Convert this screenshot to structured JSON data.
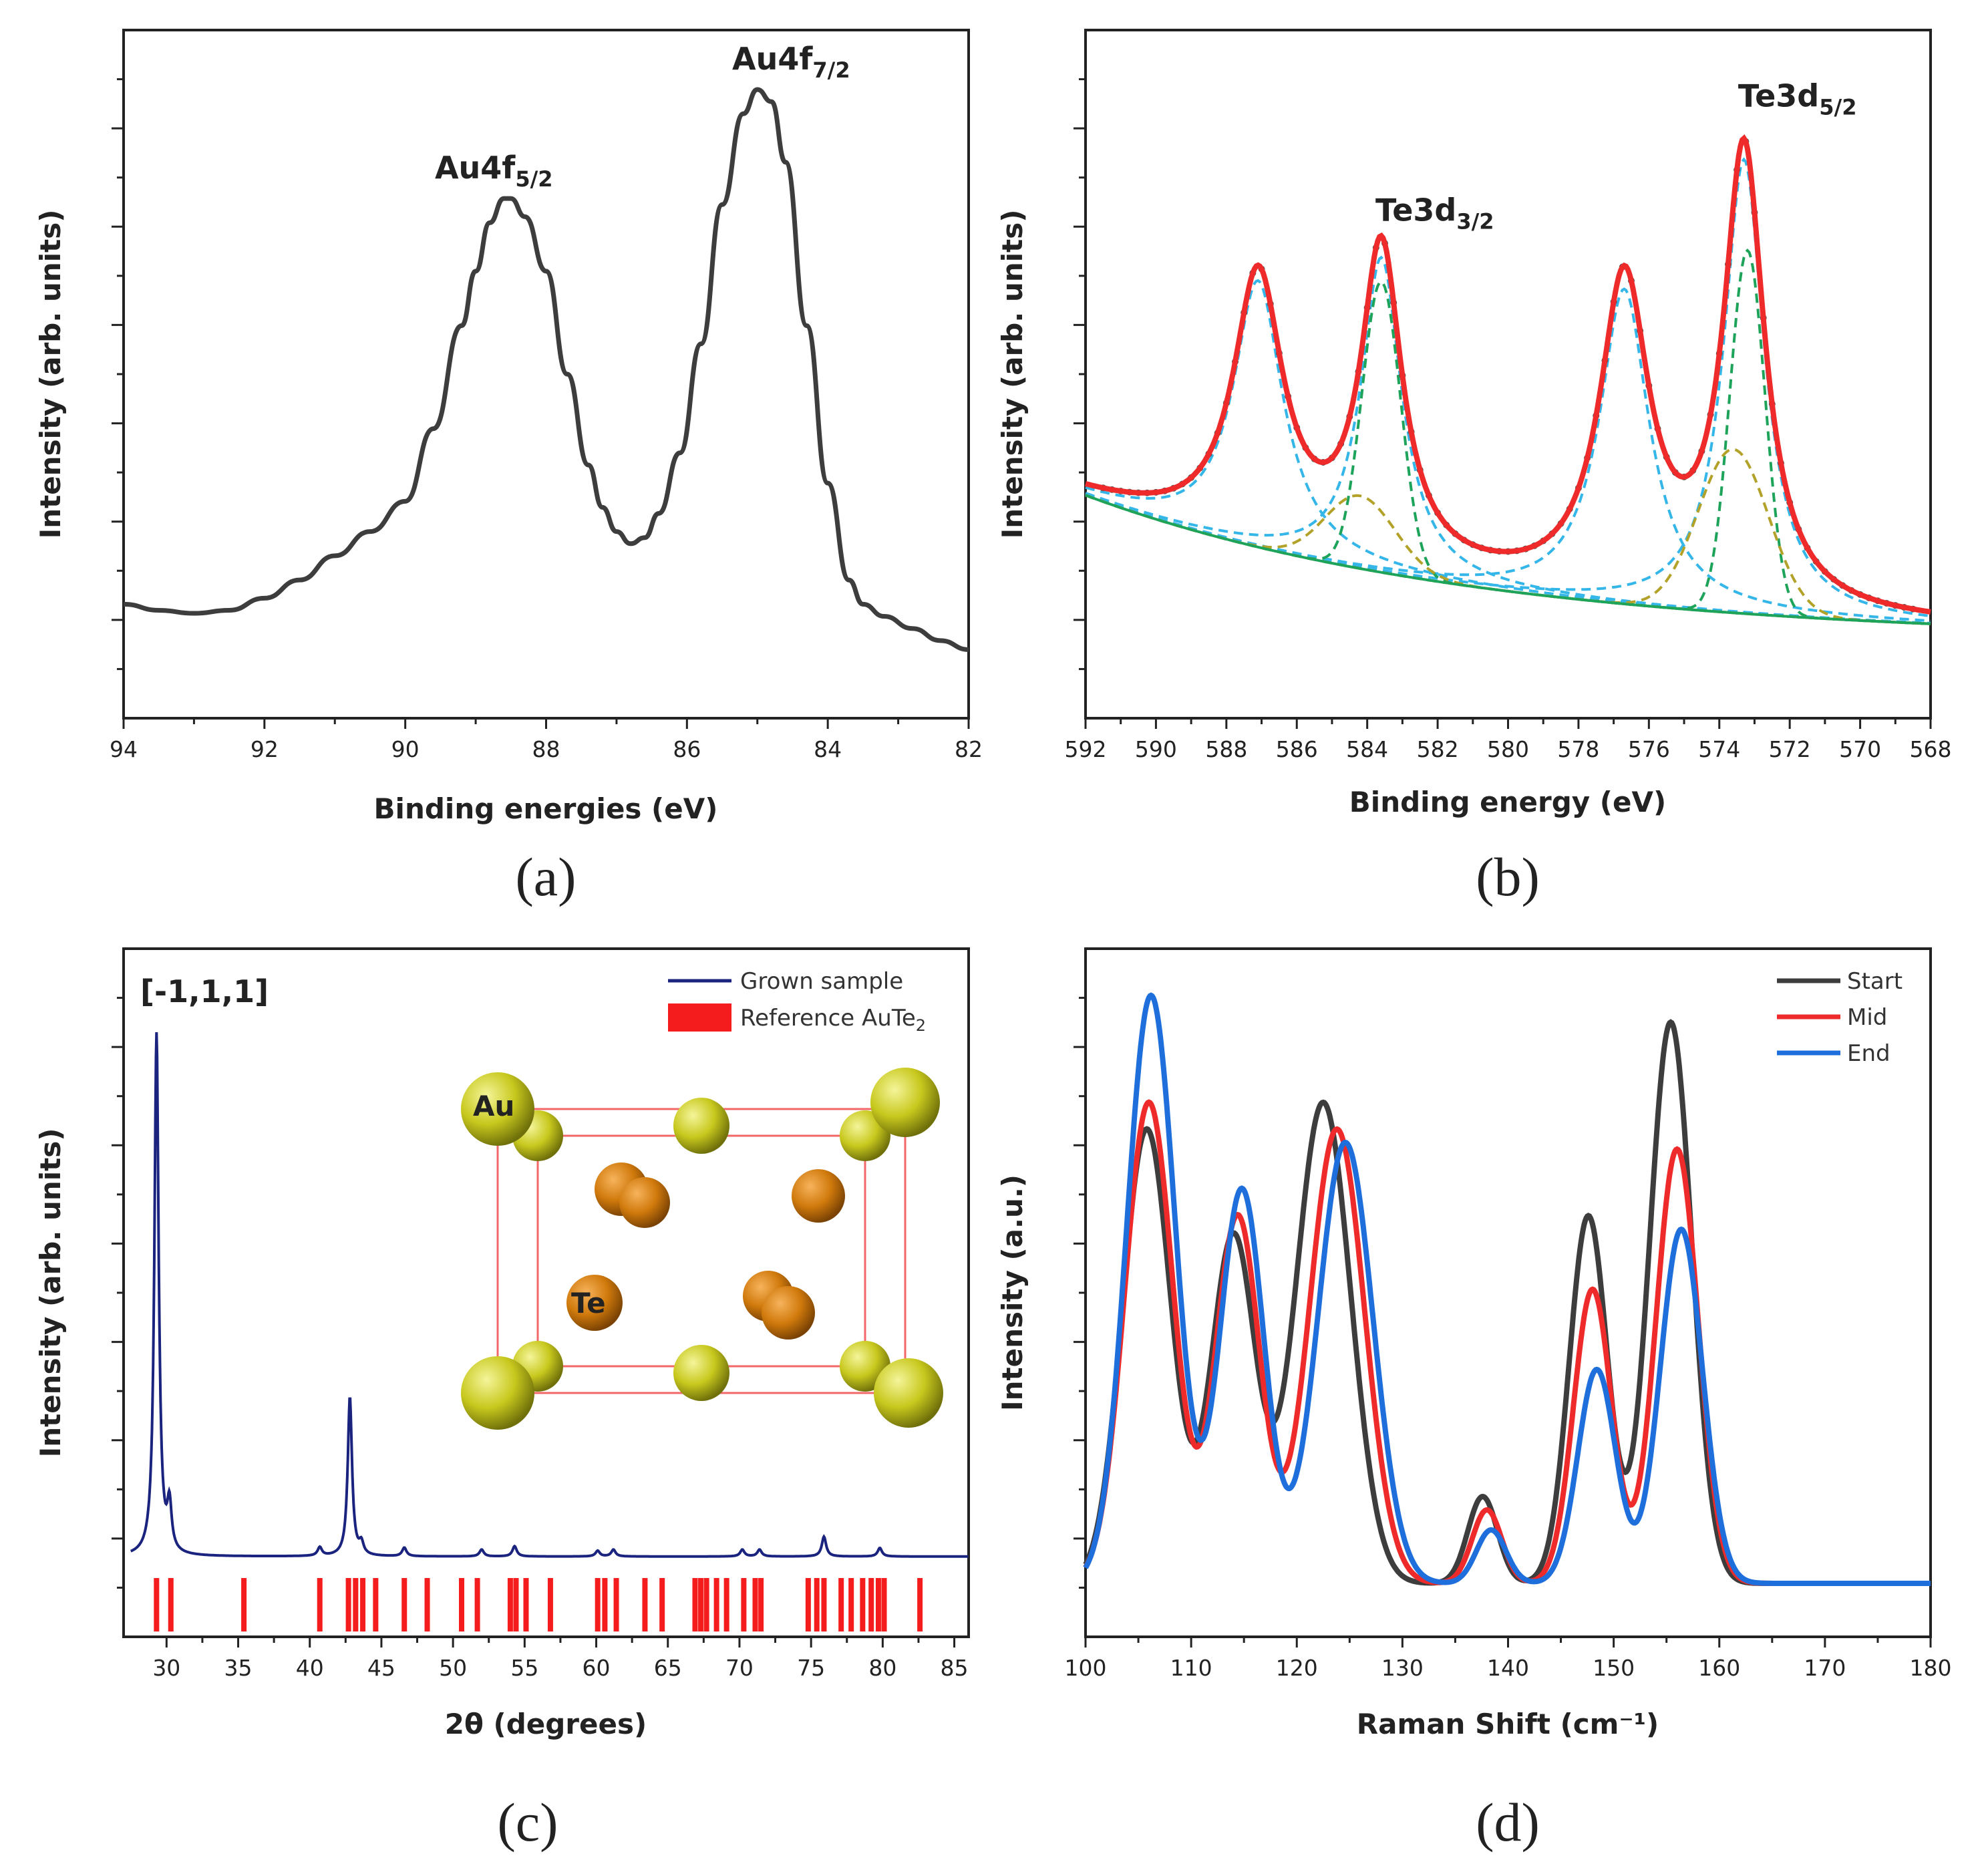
{
  "colors": {
    "dark": "#3d3d3d",
    "red": "#ee2a2a",
    "blue": "#1e6fdc",
    "navy": "#1a237e",
    "cyan": "#35b6e8",
    "green": "#1ea35a",
    "olive": "#b3a22a",
    "gold": "#cfd22a",
    "orange": "#d8800e",
    "cell": "#f26868"
  },
  "panels": [
    {
      "id": "a",
      "label": "(a)"
    },
    {
      "id": "b",
      "label": "(b)"
    },
    {
      "id": "c",
      "label": "(c)",
      "inset": {
        "direction": "[-1,1,1]",
        "atoms": [
          "Au",
          "Te"
        ]
      }
    },
    {
      "id": "d",
      "label": "(d)"
    }
  ],
  "chart_data": [
    {
      "type": "line",
      "panel": "a",
      "title": "",
      "xlabel": "Binding energies (eV)",
      "ylabel": "Intensity (arb. units)",
      "xlim": [
        94,
        82
      ],
      "ylim": [
        0,
        1
      ],
      "x_reversed": true,
      "xticks": [
        94,
        92,
        90,
        88,
        86,
        84,
        82
      ],
      "series": [
        {
          "x": [
            94,
            93.5,
            93,
            92.5,
            92,
            91.5,
            91,
            90.5,
            90,
            89.6,
            89.2,
            89,
            88.8,
            88.6,
            88.5,
            88.3,
            88,
            87.7,
            87.4,
            87.2,
            87,
            86.8,
            86.6,
            86.4,
            86.1,
            85.8,
            85.5,
            85.2,
            85,
            84.8,
            84.6,
            84.3,
            84,
            83.7,
            83.5,
            83.2,
            82.8,
            82.4,
            82
          ],
          "y": [
            0.12,
            0.11,
            0.105,
            0.11,
            0.13,
            0.16,
            0.2,
            0.24,
            0.29,
            0.41,
            0.58,
            0.67,
            0.75,
            0.79,
            0.79,
            0.76,
            0.67,
            0.5,
            0.35,
            0.28,
            0.24,
            0.22,
            0.23,
            0.27,
            0.37,
            0.55,
            0.78,
            0.93,
            0.97,
            0.95,
            0.85,
            0.58,
            0.32,
            0.16,
            0.12,
            0.1,
            0.08,
            0.06,
            0.045
          ]
        }
      ],
      "annotations": [
        {
          "text": "Au4f",
          "sub": "5/2",
          "x": 88.6,
          "y": 0.79
        },
        {
          "text": "Au4f",
          "sub": "7/2",
          "x": 84.9,
          "y": 0.97
        }
      ]
    },
    {
      "type": "line",
      "panel": "b",
      "title": "",
      "xlabel": "Binding energy (eV)",
      "ylabel": "Intensity (arb. units)",
      "xlim": [
        592,
        568
      ],
      "ylim": [
        0,
        1
      ],
      "x_reversed": true,
      "xticks": [
        592,
        590,
        588,
        586,
        584,
        582,
        580,
        578,
        576,
        574,
        572,
        570,
        568
      ],
      "fit": {
        "background": {
          "a": 0.06,
          "b": 0.24,
          "k": 0.09
        },
        "components": [
          {
            "name": "cyan",
            "center": 587.1,
            "amp": 0.44,
            "width": 0.85,
            "style": "lorentz"
          },
          {
            "name": "cyan",
            "center": 583.6,
            "amp": 0.52,
            "width": 0.7,
            "style": "lorentz"
          },
          {
            "name": "cyan",
            "center": 576.7,
            "amp": 0.52,
            "width": 0.85,
            "style": "lorentz"
          },
          {
            "name": "cyan",
            "center": 573.3,
            "amp": 0.75,
            "width": 0.7,
            "style": "lorentz"
          },
          {
            "name": "green",
            "center": 583.6,
            "amp": 0.48,
            "width": 0.55,
            "style": "gauss"
          },
          {
            "name": "green",
            "center": 573.2,
            "amp": 0.6,
            "width": 0.5,
            "style": "gauss"
          },
          {
            "name": "olive",
            "center": 584.2,
            "amp": 0.12,
            "width": 1.0,
            "style": "gauss"
          },
          {
            "name": "olive",
            "center": 573.6,
            "amp": 0.27,
            "width": 1.0,
            "style": "gauss"
          }
        ]
      },
      "annotations": [
        {
          "text": "Te3d",
          "sub": "3/2",
          "x": 583.6,
          "y": 0.72
        },
        {
          "text": "Te3d",
          "sub": "5/2",
          "x": 573.3,
          "y": 0.92
        }
      ]
    },
    {
      "type": "line",
      "panel": "c",
      "title": "",
      "xlabel": "2θ (degrees)",
      "ylabel": "Intensity (arb. units)",
      "xlim": [
        27,
        86
      ],
      "ylim": [
        0,
        1
      ],
      "xticks": [
        30,
        35,
        40,
        45,
        50,
        55,
        60,
        65,
        70,
        75,
        80,
        85
      ],
      "series": [
        {
          "name": "Grown sample",
          "peaks": [
            [
              29.3,
              0.92
            ],
            [
              30.2,
              0.08
            ],
            [
              40.7,
              0.015
            ],
            [
              42.8,
              0.28
            ],
            [
              43.6,
              0.02
            ],
            [
              46.6,
              0.015
            ],
            [
              52,
              0.012
            ],
            [
              54.3,
              0.018
            ],
            [
              60.1,
              0.01
            ],
            [
              61.2,
              0.012
            ],
            [
              70.2,
              0.012
            ],
            [
              71.4,
              0.012
            ],
            [
              75.9,
              0.035
            ],
            [
              79.8,
              0.015
            ]
          ],
          "baseline": 0.012
        }
      ],
      "reference": {
        "name": "Reference AuTe2",
        "name_main": "Reference AuTe",
        "name_sub": "2",
        "positions": [
          29.3,
          30.3,
          35.4,
          40.7,
          42.7,
          43.2,
          43.7,
          44.6,
          46.6,
          48.2,
          50.6,
          51.7,
          54,
          54.4,
          55.1,
          56.8,
          60.1,
          60.6,
          61.4,
          63.4,
          64.6,
          66.9,
          67.3,
          67.7,
          68.4,
          69.1,
          70.3,
          71.1,
          71.5,
          74.8,
          75.4,
          75.9,
          77.1,
          77.8,
          78.6,
          79.2,
          79.7,
          80.1,
          82.6
        ]
      },
      "legend": "top-right"
    },
    {
      "type": "line",
      "panel": "d",
      "title": "",
      "xlabel": "Raman Shift (cm⁻¹)",
      "ylabel": "Intensity (a.u.)",
      "xlim": [
        100,
        180
      ],
      "ylim": [
        0,
        1
      ],
      "xticks": [
        100,
        110,
        120,
        130,
        140,
        150,
        160,
        170,
        180
      ],
      "series": [
        {
          "name": "Start",
          "peaks": [
            [
              105.8,
              0.68,
              2.3
            ],
            [
              114,
              0.52,
              2.1
            ],
            [
              122.5,
              0.72,
              2.6
            ],
            [
              137.6,
              0.13,
              1.4
            ],
            [
              147.6,
              0.55,
              1.8
            ],
            [
              155.4,
              0.84,
              2.0
            ]
          ],
          "baseline": 0.04
        },
        {
          "name": "Mid",
          "peaks": [
            [
              106,
              0.72,
              2.3
            ],
            [
              114.4,
              0.55,
              2.1
            ],
            [
              123.8,
              0.68,
              2.6
            ],
            [
              138,
              0.11,
              1.4
            ],
            [
              148,
              0.44,
              1.8
            ],
            [
              156,
              0.65,
              2.0
            ]
          ],
          "baseline": 0.04
        },
        {
          "name": "End",
          "peaks": [
            [
              106.2,
              0.88,
              2.3
            ],
            [
              114.8,
              0.59,
              2.1
            ],
            [
              124.6,
              0.66,
              2.6
            ],
            [
              138.4,
              0.08,
              1.4
            ],
            [
              148.4,
              0.32,
              1.8
            ],
            [
              156.4,
              0.53,
              2.0
            ]
          ],
          "baseline": 0.04
        }
      ],
      "legend": "top-right"
    }
  ]
}
